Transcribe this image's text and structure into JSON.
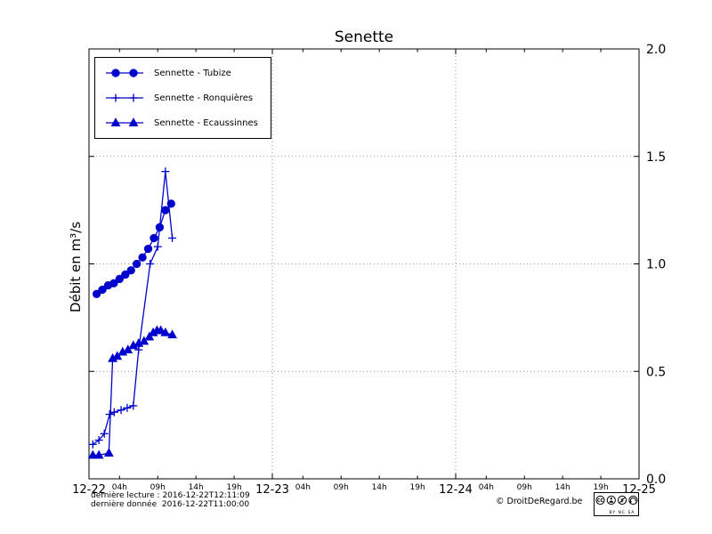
{
  "title": "Senette",
  "ylabel": "Débit en m³/s",
  "footer": {
    "line1": "dernière lecture : 2016-12-22T12:11:09",
    "line2": "dernière donnée  2016-12-22T11:00:00",
    "copyright": "© DroitDeRegard.be",
    "license_label": "BY NC SA",
    "license_cc": "CC"
  },
  "chart_data": {
    "type": "line",
    "title": "Senette",
    "ylabel": "Débit en m³/s",
    "legend_position": "upper-left",
    "grid": true,
    "x_axis": {
      "day_labels": [
        "12-22",
        "12-23",
        "12-24",
        "12-25"
      ],
      "hour_labels": [
        "04h",
        "09h",
        "14h",
        "19h"
      ],
      "range_hours": [
        0,
        72
      ]
    },
    "y_axis": {
      "min": 0,
      "max": 2,
      "tick_values": [
        0,
        0.5,
        1,
        1.5,
        2
      ],
      "tick_labels": [
        "0.0",
        "0.5",
        "1.0",
        "1.5",
        "2.0"
      ],
      "grid_values": [
        0.5,
        1,
        1.5
      ]
    },
    "series": [
      {
        "name": "Sennette - Tubize",
        "marker": "circle",
        "color": "#0000cc",
        "x_hours": [
          1.0,
          1.75,
          2.5,
          3.25,
          4.0,
          4.75,
          5.5,
          6.25,
          7.0,
          7.75,
          8.5,
          9.25,
          10.0,
          10.75
        ],
        "values": [
          0.86,
          0.88,
          0.9,
          0.91,
          0.93,
          0.95,
          0.97,
          1.0,
          1.03,
          1.07,
          1.12,
          1.17,
          1.25,
          1.28
        ]
      },
      {
        "name": "Sennette - Ronquières",
        "marker": "plus",
        "color": "#0000cc",
        "x_hours": [
          0.5,
          1.3,
          2.0,
          2.7,
          3.3,
          4.2,
          5.0,
          5.8,
          6.5,
          8.0,
          9.0,
          10.0,
          10.9
        ],
        "values": [
          0.16,
          0.18,
          0.21,
          0.3,
          0.31,
          0.32,
          0.33,
          0.34,
          0.6,
          1.0,
          1.08,
          1.43,
          1.12
        ]
      },
      {
        "name": "Sennette - Ecaussinnes",
        "marker": "triangle",
        "color": "#0000cc",
        "x_hours": [
          0.5,
          1.3,
          2.6,
          3.1,
          3.7,
          4.4,
          5.1,
          5.8,
          6.5,
          7.2,
          7.9,
          8.4,
          8.9,
          9.4,
          10.0,
          10.9
        ],
        "values": [
          0.11,
          0.11,
          0.12,
          0.56,
          0.57,
          0.59,
          0.6,
          0.62,
          0.63,
          0.64,
          0.66,
          0.68,
          0.69,
          0.69,
          0.68,
          0.67
        ]
      }
    ]
  }
}
